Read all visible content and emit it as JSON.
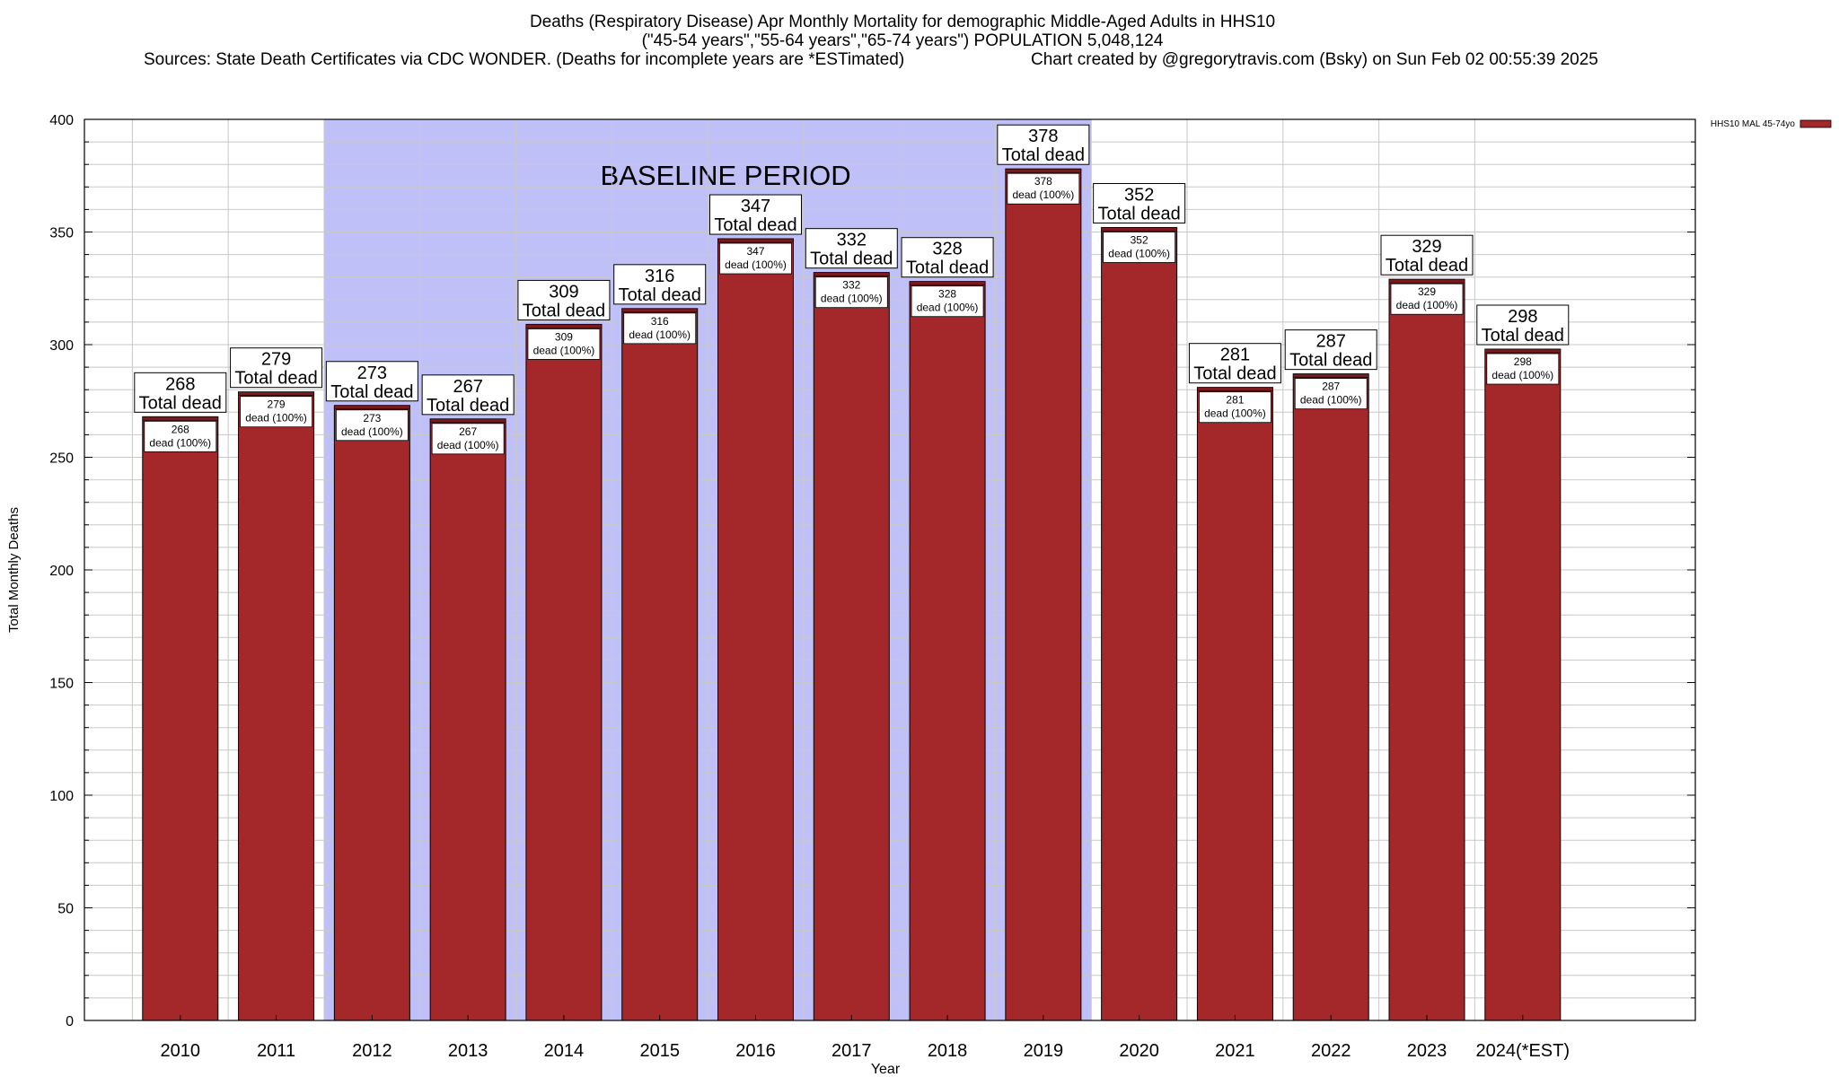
{
  "chart_data": {
    "type": "bar",
    "title_lines": [
      "Deaths (Respiratory Disease) Apr Monthly Mortality for demographic Middle-Aged Adults in HHS10",
      "(\"45-54 years\",\"55-64 years\",\"65-74 years\") POPULATION 5,048,124"
    ],
    "sources_text": "Sources: State Death Certificates via CDC WONDER. (Deaths for incomplete years are *ESTimated)",
    "credit_text": "Chart created by @gregorytravis.com (Bsky) on Sun Feb 02 00:55:39 2025",
    "xlabel": "Year",
    "ylabel": "Total Monthly Deaths",
    "ylim": [
      0,
      400
    ],
    "y_ticks": [
      "0",
      "50",
      "100",
      "150",
      "200",
      "250",
      "300",
      "350",
      "400"
    ],
    "categories": [
      "2010",
      "2011",
      "2012",
      "2013",
      "2014",
      "2015",
      "2016",
      "2017",
      "2018",
      "2019",
      "2020",
      "2021",
      "2022",
      "2023",
      "2024(*EST)"
    ],
    "series": [
      {
        "name": "HHS10 MAL 45-74yo",
        "values": [
          268,
          279,
          273,
          267,
          309,
          316,
          347,
          332,
          328,
          378,
          352,
          281,
          287,
          329,
          298
        ]
      }
    ],
    "total_labels": [
      "268",
      "279",
      "273",
      "267",
      "309",
      "316",
      "347",
      "332",
      "328",
      "378",
      "352",
      "281",
      "287",
      "329",
      "298"
    ],
    "total_suffix": "Total dead",
    "inner_labels": [
      "268",
      "279",
      "273",
      "267",
      "309",
      "316",
      "347",
      "332",
      "328",
      "378",
      "352",
      "281",
      "287",
      "329",
      "298"
    ],
    "inner_suffix": "dead (100%)",
    "baseline": {
      "label": "BASELINE PERIOD",
      "from": "2012",
      "to": "2019"
    },
    "legend": {
      "position": "top-right",
      "entries": [
        "HHS10 MAL 45-74yo"
      ]
    },
    "grid": true,
    "colors": {
      "bar": "#a4282a",
      "bar_top": "#7a1a1c",
      "baseline": "#c0c0f8",
      "grid": "#c8c8c8"
    }
  }
}
